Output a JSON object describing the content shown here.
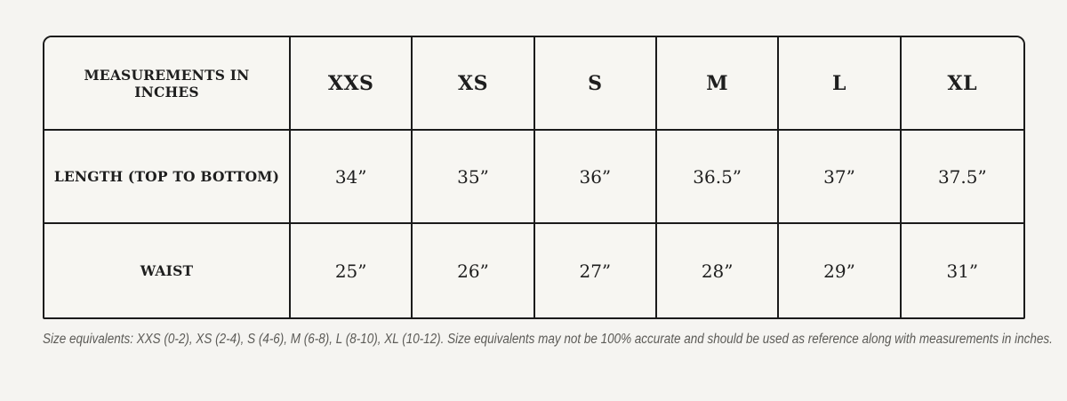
{
  "page": {
    "background_color": "#f5f4f1"
  },
  "table": {
    "border_color": "#1b1b1b",
    "cell_background_color": "#f7f6f2",
    "text_color": "#1e1e1e",
    "corner_label": "MEASUREMENTS IN INCHES",
    "size_headers": [
      "XXS",
      "XS",
      "S",
      "M",
      "L",
      "XL"
    ],
    "rows": [
      {
        "label": "LENGTH (TOP TO BOTTOM)",
        "values": [
          "34”",
          "35”",
          "36”",
          "36.5”",
          "37”",
          "37.5”"
        ]
      },
      {
        "label": "WAIST",
        "values": [
          "25”",
          "26”",
          "27”",
          "28”",
          "29”",
          "31”"
        ]
      }
    ]
  },
  "footnote": {
    "text": "Size equivalents: XXS (0-2), XS (2-4), S (4-6), M (6-8), L (8-10), XL (10-12). Size equivalents may not be 100% accurate and should be used as reference along with measurements in inches.",
    "text_color": "#5c5b57"
  }
}
